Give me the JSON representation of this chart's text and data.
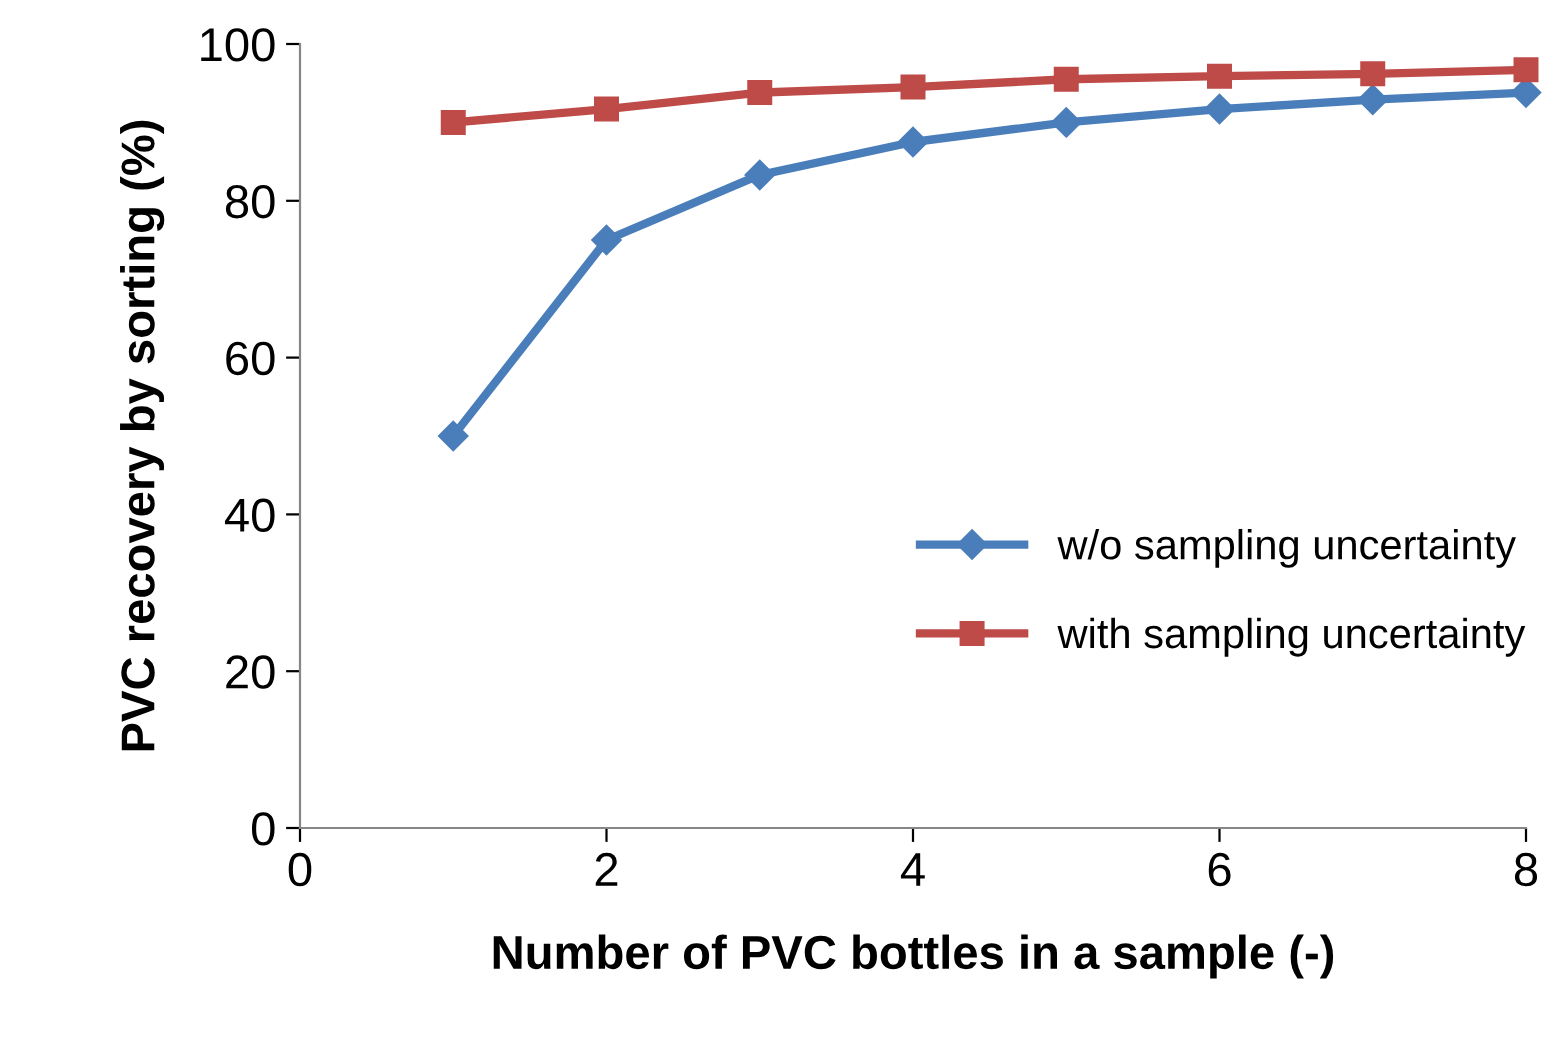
{
  "chart_data": {
    "type": "line",
    "xlabel": "Number of PVC bottles in a sample (-)",
    "ylabel": "PVC recovery by sorting (%)",
    "x": [
      1,
      2,
      3,
      4,
      5,
      6,
      7,
      8
    ],
    "series": [
      {
        "name": "w/o sampling uncertainty",
        "color": "#4a7ebb",
        "marker": "diamond",
        "values": [
          50,
          75,
          83.3,
          87.5,
          90,
          91.7,
          92.9,
          93.8
        ]
      },
      {
        "name": "with sampling uncertainty",
        "color": "#be4b48",
        "marker": "square",
        "values": [
          90,
          91.7,
          93.8,
          94.5,
          95.5,
          95.9,
          96.2,
          96.7
        ]
      }
    ],
    "xlim": [
      0,
      8
    ],
    "xticks": [
      0,
      2,
      4,
      6,
      8
    ],
    "ylim": [
      0,
      100
    ],
    "yticks": [
      0,
      20,
      40,
      60,
      80,
      100
    ],
    "grid": false,
    "legend": "right",
    "line_style": "solid"
  }
}
